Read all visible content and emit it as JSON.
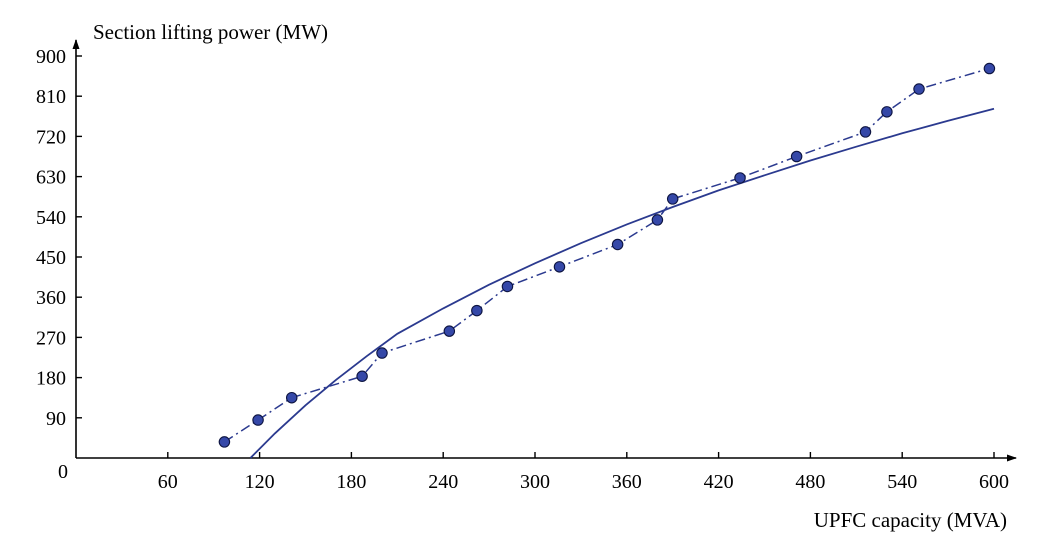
{
  "chart_data": {
    "type": "line",
    "xlabel": "UPFC capacity (MVA)",
    "ylabel": "Section lifting power (MW)",
    "origin_label": "0",
    "xlim": [
      0,
      600
    ],
    "ylim": [
      0,
      900
    ],
    "xticks": [
      60,
      120,
      180,
      240,
      300,
      360,
      420,
      480,
      540,
      600
    ],
    "yticks": [
      90,
      180,
      270,
      360,
      450,
      540,
      630,
      720,
      810,
      900
    ],
    "grid": false,
    "legend": "none",
    "series": [
      {
        "style": "dash-dot with circle markers",
        "color": "#2b3a8f",
        "marker_fill": "#3548a8",
        "x": [
          97,
          119,
          141,
          187,
          200,
          244,
          262,
          282,
          316,
          354,
          380,
          390,
          434,
          471,
          516,
          530,
          551,
          597
        ],
        "y": [
          36,
          85,
          135,
          183,
          235,
          284,
          330,
          384,
          428,
          478,
          533,
          580,
          627,
          675,
          730,
          775,
          826,
          872
        ]
      },
      {
        "style": "solid fitted curve",
        "color": "#2b3a8f",
        "x": [
          114,
          130,
          150,
          170,
          190,
          210,
          240,
          270,
          300,
          330,
          360,
          390,
          420,
          450,
          480,
          510,
          540,
          570,
          600
        ],
        "y": [
          0,
          55,
          118,
          175,
          228,
          278,
          335,
          388,
          436,
          481,
          523,
          562,
          599,
          633,
          666,
          697,
          727,
          755,
          782
        ]
      }
    ]
  }
}
